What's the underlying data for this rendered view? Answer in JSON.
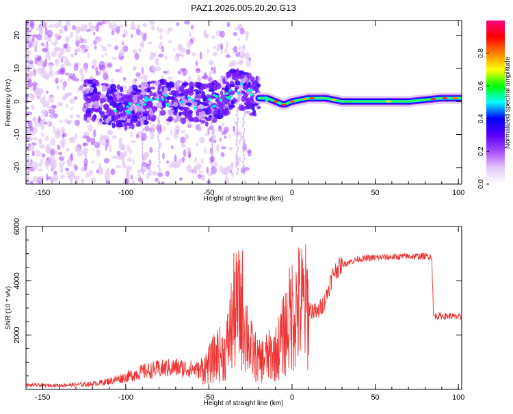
{
  "chart_data": [
    {
      "type": "heatmap",
      "title": "PAZ1.2026.005.20.20.G13",
      "xlabel": "Height of straight line (km)",
      "ylabel": "Frequency (Hz)",
      "xlim": [
        -160,
        102
      ],
      "ylim": [
        -25,
        24.5
      ],
      "xticks": [
        -150,
        -100,
        -50,
        0,
        50,
        100
      ],
      "yticks": [
        -20,
        -10,
        0,
        10,
        20
      ],
      "colorbar": {
        "label": "Normalized spectral amplitude",
        "range": [
          0,
          1
        ],
        "ticks": [
          "0.0",
          "0.2",
          "0.4",
          "0.6",
          "0.8"
        ],
        "colors": [
          "#ffffff",
          "#e3c8f5",
          "#a64dff",
          "#5500ff",
          "#0000ff",
          "#00ffff",
          "#00ff00",
          "#ffff00",
          "#ff8000",
          "#ff0000",
          "#ff0080"
        ]
      },
      "ridge": {
        "x": [
          -125,
          -110,
          -100,
          -90,
          -80,
          -70,
          -60,
          -50,
          -40,
          -33,
          -28,
          -25,
          -20,
          -15,
          -10,
          -5,
          0,
          10,
          20,
          30,
          50,
          70,
          90,
          100
        ],
        "y": [
          1,
          -1,
          -2,
          -1,
          1,
          0,
          0,
          -1,
          2,
          4,
          3,
          2,
          1,
          1,
          0,
          -1,
          0,
          1,
          1,
          0,
          0,
          0,
          1,
          1
        ]
      }
    },
    {
      "type": "line",
      "xlabel": "Height of straight line (km)",
      "ylabel": "SNR (10 * v/v)",
      "xlim": [
        -160,
        102
      ],
      "ylim": [
        0,
        6000
      ],
      "xticks": [
        -150,
        -100,
        -50,
        0,
        50,
        100
      ],
      "yticks": [
        2000,
        4000,
        6000
      ],
      "series": [
        {
          "name": "SNR",
          "color": "#ee3333",
          "x": [
            -160,
            -150,
            -140,
            -130,
            -120,
            -110,
            -100,
            -90,
            -80,
            -70,
            -60,
            -55,
            -50,
            -45,
            -40,
            -35,
            -30,
            -25,
            -20,
            -15,
            -10,
            -5,
            0,
            5,
            10,
            15,
            20,
            25,
            30,
            40,
            50,
            60,
            70,
            80,
            84,
            85,
            90,
            95,
            102
          ],
          "y": [
            150,
            150,
            150,
            170,
            200,
            300,
            450,
            650,
            750,
            800,
            750,
            700,
            900,
            1300,
            1300,
            2800,
            3000,
            1500,
            1000,
            1200,
            1300,
            2000,
            2800,
            3100,
            3000,
            2800,
            3300,
            4300,
            4600,
            4800,
            4850,
            4880,
            4900,
            4900,
            4900,
            2700,
            2700,
            2700,
            2650
          ]
        }
      ]
    }
  ]
}
